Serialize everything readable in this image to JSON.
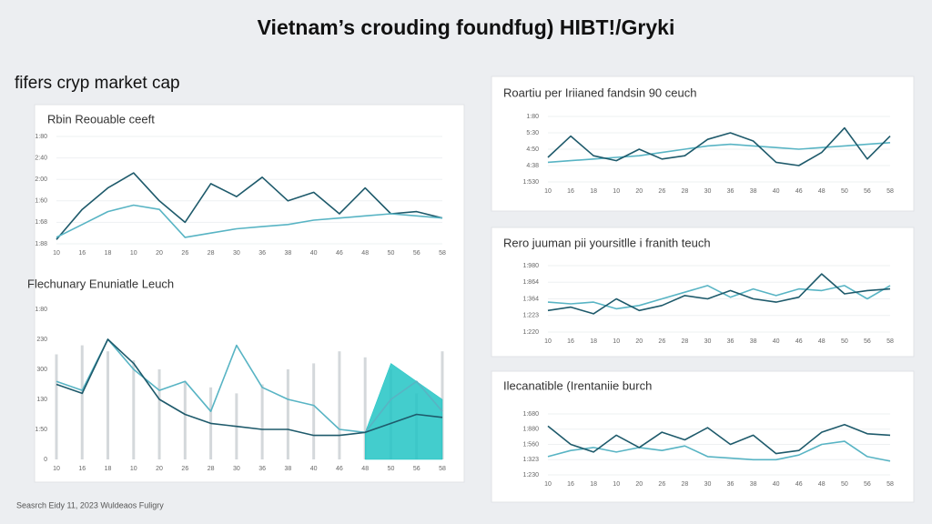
{
  "header": {
    "title": "Vietnam’s crouding foundfug) HIBT!/Gryki"
  },
  "section": {
    "title": "fifers cryp market cap"
  },
  "footer": {
    "text": "Seasrch Eidy 11, 2023 Wuldeaos Fuligry"
  },
  "chart_data": [
    {
      "type": "line",
      "title": "Rbin Reouable ceeft",
      "grid": true,
      "ylim": [
        0,
        5
      ],
      "yticks": [
        {
          "value": 0,
          "label": "1:88"
        },
        {
          "value": 1,
          "label": "1:68"
        },
        {
          "value": 2,
          "label": "1:60"
        },
        {
          "value": 3,
          "label": "2:00"
        },
        {
          "value": 4,
          "label": "2:40"
        },
        {
          "value": 5,
          "label": "1:80"
        }
      ],
      "categories": [
        "10",
        "16",
        "18",
        "10",
        "20",
        "26",
        "28",
        "30",
        "36",
        "38",
        "40",
        "46",
        "48",
        "50",
        "56",
        "58"
      ],
      "series": [
        {
          "kind": "line",
          "color": "#1e5a6b",
          "values": [
            0.2,
            1.6,
            2.6,
            3.3,
            2.0,
            1.0,
            2.8,
            2.2,
            3.1,
            2.0,
            2.4,
            1.4,
            2.6,
            1.4,
            1.5,
            1.2
          ]
        },
        {
          "kind": "line",
          "color": "#58b4c4",
          "values": [
            0.3,
            0.9,
            1.5,
            1.8,
            1.6,
            0.3,
            0.5,
            0.7,
            0.8,
            0.9,
            1.1,
            1.2,
            1.3,
            1.4,
            1.3,
            1.2
          ]
        }
      ]
    },
    {
      "type": "line",
      "title": "Flechunary Enuniatle Leuch",
      "grid": false,
      "ylim": [
        0,
        5
      ],
      "yticks": [
        {
          "value": 0,
          "label": "0"
        },
        {
          "value": 1,
          "label": "1:50"
        },
        {
          "value": 2,
          "label": "130"
        },
        {
          "value": 3,
          "label": "300"
        },
        {
          "value": 4,
          "label": "230"
        },
        {
          "value": 5,
          "label": "1:80"
        }
      ],
      "categories": [
        "10",
        "16",
        "18",
        "10",
        "20",
        "26",
        "28",
        "30",
        "36",
        "38",
        "40",
        "46",
        "48",
        "50",
        "56",
        "58"
      ],
      "series": [
        {
          "kind": "bar",
          "color": "#d4d8db",
          "values": [
            3.5,
            3.8,
            3.6,
            3.3,
            3.0,
            2.6,
            2.4,
            2.2,
            2.5,
            3.0,
            3.2,
            3.6,
            3.4,
            3.0,
            2.2,
            3.6
          ]
        },
        {
          "kind": "area",
          "color": "#22c4c4",
          "values": [
            null,
            null,
            null,
            null,
            null,
            null,
            null,
            null,
            null,
            null,
            null,
            null,
            0.9,
            3.2,
            2.6,
            2.0
          ]
        },
        {
          "kind": "line",
          "color": "#58b4c4",
          "values": [
            2.6,
            2.3,
            4.0,
            3.0,
            2.3,
            2.6,
            1.6,
            3.8,
            2.4,
            2.0,
            1.8,
            1.0,
            0.9,
            2.0,
            2.6,
            1.6
          ]
        },
        {
          "kind": "line",
          "color": "#1e5a6b",
          "values": [
            2.5,
            2.2,
            4.0,
            3.2,
            2.0,
            1.5,
            1.2,
            1.1,
            1.0,
            1.0,
            0.8,
            0.8,
            0.9,
            1.2,
            1.5,
            1.4
          ]
        }
      ]
    },
    {
      "type": "line",
      "title": "Roartiu per Iriianed fandsin 90 ceuch",
      "grid": true,
      "ylim": [
        0,
        4
      ],
      "yticks": [
        {
          "value": 0,
          "label": "1:530"
        },
        {
          "value": 1,
          "label": "4:38"
        },
        {
          "value": 2,
          "label": "4:50"
        },
        {
          "value": 3,
          "label": "5:30"
        },
        {
          "value": 4,
          "label": "1:80"
        }
      ],
      "categories": [
        "10",
        "16",
        "18",
        "10",
        "20",
        "26",
        "28",
        "30",
        "36",
        "38",
        "40",
        "46",
        "48",
        "50",
        "56",
        "58"
      ],
      "series": [
        {
          "kind": "line",
          "color": "#58b4c4",
          "values": [
            1.2,
            1.3,
            1.4,
            1.5,
            1.6,
            1.8,
            2.0,
            2.2,
            2.3,
            2.2,
            2.1,
            2.0,
            2.1,
            2.2,
            2.3,
            2.4
          ]
        },
        {
          "kind": "line",
          "color": "#1e5a6b",
          "values": [
            1.5,
            2.8,
            1.6,
            1.3,
            2.0,
            1.4,
            1.6,
            2.6,
            3.0,
            2.5,
            1.2,
            1.0,
            1.8,
            3.3,
            1.4,
            2.8
          ]
        }
      ]
    },
    {
      "type": "line",
      "title": "Rero juuman pii yoursitlle i franith teuch",
      "grid": true,
      "ylim": [
        0,
        4
      ],
      "yticks": [
        {
          "value": 0,
          "label": "1:220"
        },
        {
          "value": 1,
          "label": "1:223"
        },
        {
          "value": 2,
          "label": "1:364"
        },
        {
          "value": 3,
          "label": "1:864"
        },
        {
          "value": 4,
          "label": "1:980"
        }
      ],
      "categories": [
        "10",
        "16",
        "18",
        "10",
        "20",
        "26",
        "28",
        "30",
        "36",
        "38",
        "40",
        "46",
        "48",
        "50",
        "56",
        "58"
      ],
      "series": [
        {
          "kind": "line",
          "color": "#58b4c4",
          "values": [
            1.8,
            1.7,
            1.8,
            1.4,
            1.6,
            2.0,
            2.4,
            2.8,
            2.1,
            2.6,
            2.2,
            2.6,
            2.5,
            2.8,
            2.0,
            2.8
          ]
        },
        {
          "kind": "line",
          "color": "#1e5a6b",
          "values": [
            1.3,
            1.5,
            1.1,
            2.0,
            1.3,
            1.6,
            2.2,
            2.0,
            2.5,
            2.0,
            1.8,
            2.1,
            3.5,
            2.3,
            2.5,
            2.6
          ]
        }
      ]
    },
    {
      "type": "line",
      "title": "Ilecanatible (Irentaniie burch",
      "grid": true,
      "ylim": [
        0,
        4
      ],
      "yticks": [
        {
          "value": 0,
          "label": "1:230"
        },
        {
          "value": 1,
          "label": "1:323"
        },
        {
          "value": 2,
          "label": "1:560"
        },
        {
          "value": 3,
          "label": "1:880"
        },
        {
          "value": 4,
          "label": "1:680"
        }
      ],
      "categories": [
        "10",
        "16",
        "18",
        "10",
        "20",
        "26",
        "28",
        "30",
        "36",
        "38",
        "40",
        "46",
        "48",
        "50",
        "56",
        "58"
      ],
      "series": [
        {
          "kind": "line",
          "color": "#58b4c4",
          "values": [
            1.2,
            1.6,
            1.8,
            1.5,
            1.8,
            1.6,
            1.9,
            1.2,
            1.1,
            1.0,
            1.0,
            1.3,
            2.0,
            2.2,
            1.2,
            0.9
          ]
        },
        {
          "kind": "line",
          "color": "#1e5a6b",
          "values": [
            3.2,
            2.0,
            1.5,
            2.6,
            1.8,
            2.8,
            2.3,
            3.1,
            2.0,
            2.6,
            1.4,
            1.6,
            2.8,
            3.3,
            2.7,
            2.6
          ]
        }
      ]
    }
  ]
}
